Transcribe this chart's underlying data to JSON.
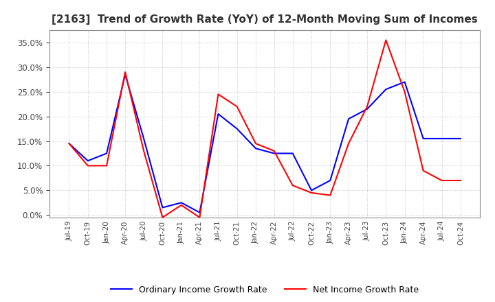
{
  "title": "[2163]  Trend of Growth Rate (YoY) of 12-Month Moving Sum of Incomes",
  "title_fontsize": 11,
  "ordinary_color": "#0000FF",
  "net_color": "#FF0000",
  "ordinary_label": "Ordinary Income Growth Rate",
  "net_label": "Net Income Growth Rate",
  "background_color": "#FFFFFF",
  "grid_color": "#AAAAAA",
  "ylim": [
    -0.005,
    0.375
  ],
  "yticks": [
    0.0,
    0.05,
    0.1,
    0.15,
    0.2,
    0.25,
    0.3,
    0.35
  ],
  "x_dates": [
    "Jul-19",
    "Oct-19",
    "Jan-20",
    "Apr-20",
    "Jul-20",
    "Oct-20",
    "Jan-21",
    "Apr-21",
    "Jul-21",
    "Oct-21",
    "Jan-22",
    "Apr-22",
    "Jul-22",
    "Oct-22",
    "Jan-23",
    "Apr-23",
    "Jul-23",
    "Oct-23",
    "Jan-24",
    "Apr-24",
    "Jul-24",
    "Oct-24"
  ],
  "ordinary_values": [
    0.145,
    0.11,
    0.125,
    0.285,
    0.155,
    0.015,
    0.025,
    0.005,
    0.205,
    0.175,
    0.135,
    0.125,
    0.125,
    0.05,
    0.07,
    0.195,
    0.215,
    0.255,
    0.27,
    0.155,
    0.155,
    0.155
  ],
  "net_values": [
    0.145,
    0.1,
    0.1,
    0.29,
    0.13,
    -0.005,
    0.02,
    -0.005,
    0.245,
    0.22,
    0.145,
    0.13,
    0.06,
    0.045,
    0.04,
    0.145,
    0.22,
    0.355,
    0.25,
    0.09,
    0.07,
    0.07
  ]
}
